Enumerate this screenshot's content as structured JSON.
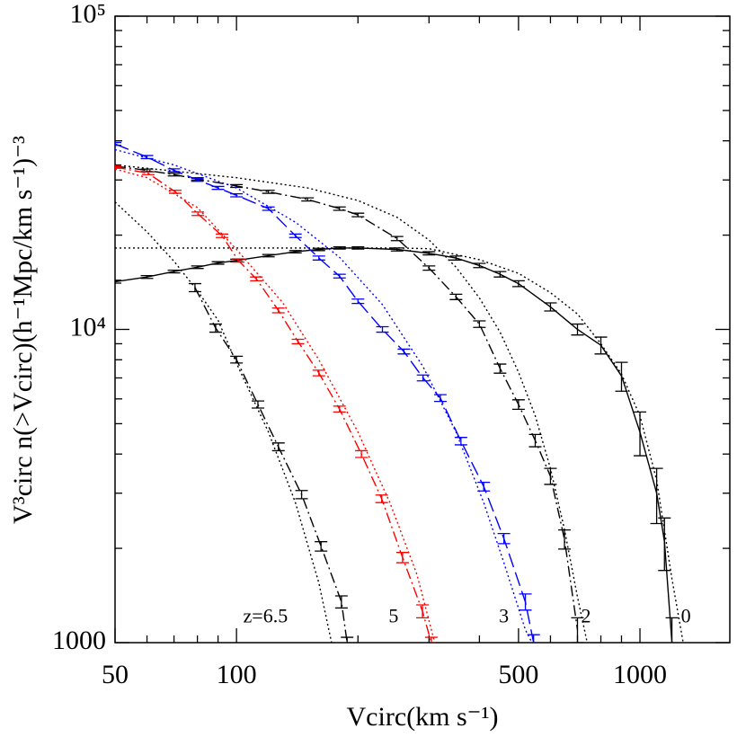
{
  "chart_data": {
    "type": "line",
    "xlabel": "Vcirc(km s⁻¹)",
    "ylabel": "V³circ n(>Vcirc)(h⁻¹Mpc/km s⁻¹)⁻³",
    "xlog": true,
    "ylog": true,
    "xlim": [
      50,
      1670
    ],
    "ylim": [
      1000,
      100000
    ],
    "xticks": [
      50,
      100,
      500,
      1000
    ],
    "yticks": [
      {
        "value": 1000,
        "label": "1000"
      },
      {
        "value": 10000,
        "label": "10⁴"
      },
      {
        "value": 100000,
        "label": "10⁵"
      }
    ],
    "xminor": [
      60,
      70,
      80,
      90,
      200,
      300,
      400,
      600,
      700,
      800,
      900
    ],
    "yminor": [
      2000,
      3000,
      4000,
      5000,
      6000,
      7000,
      8000,
      9000,
      20000,
      30000,
      40000,
      50000,
      60000,
      70000,
      80000,
      90000
    ],
    "series": [
      {
        "color": "#000000",
        "linestyle": "solid",
        "x": [
          50,
          60,
          70,
          80,
          90,
          100,
          120,
          140,
          160,
          180,
          200,
          250,
          300,
          350,
          400,
          450,
          500,
          600,
          700,
          800,
          900,
          1000,
          1100,
          1150,
          1200
        ],
        "values": [
          14200,
          14700,
          15300,
          15800,
          16300,
          16600,
          17200,
          17700,
          18000,
          18200,
          18200,
          18000,
          17500,
          16900,
          16000,
          15000,
          14000,
          11800,
          10000,
          8900,
          7100,
          4700,
          3000,
          2100,
          1000
        ],
        "errors": [
          150,
          150,
          150,
          150,
          150,
          150,
          150,
          150,
          150,
          150,
          150,
          200,
          200,
          250,
          250,
          300,
          300,
          350,
          400,
          550,
          750,
          750,
          600,
          400,
          200
        ]
      },
      {
        "color": "#000000",
        "linestyle": "dotted",
        "x": [
          50,
          100,
          150,
          200,
          250,
          300,
          400,
          500,
          600,
          700,
          800,
          900,
          1000,
          1100,
          1200,
          1280
        ],
        "values": [
          18200,
          18200,
          18200,
          18200,
          18200,
          18100,
          16700,
          15100,
          13100,
          11200,
          9000,
          7200,
          5300,
          3300,
          1600,
          1000
        ]
      },
      {
        "color": "#000000",
        "linestyle": "dash-dot",
        "x": [
          50,
          60,
          70,
          80,
          100,
          120,
          150,
          180,
          200,
          250,
          300,
          350,
          400,
          450,
          500,
          550,
          600,
          650,
          700
        ],
        "values": [
          33200,
          32200,
          31200,
          30200,
          28700,
          27500,
          26000,
          24300,
          23200,
          19500,
          15700,
          12700,
          10400,
          7500,
          5760,
          4420,
          3400,
          2140,
          1100
        ],
        "errors": [
          300,
          300,
          300,
          300,
          300,
          300,
          300,
          300,
          300,
          300,
          250,
          250,
          250,
          250,
          200,
          200,
          200,
          150,
          100
        ]
      },
      {
        "color": "#000000",
        "linestyle": "dotted",
        "x": [
          50,
          100,
          150,
          200,
          250,
          300,
          350,
          400,
          450,
          500,
          550,
          600,
          650,
          700,
          740
        ],
        "values": [
          33500,
          30500,
          28300,
          25800,
          22800,
          19300,
          15800,
          12600,
          9800,
          7300,
          5300,
          3600,
          2300,
          1400,
          1000
        ]
      },
      {
        "color": "#0000ff",
        "linestyle": "dashed",
        "x": [
          50,
          60,
          70,
          80,
          90,
          100,
          120,
          140,
          160,
          180,
          200,
          230,
          260,
          290,
          320,
          360,
          410,
          460,
          520,
          545
        ],
        "values": [
          39100,
          35500,
          32200,
          30000,
          28300,
          26800,
          24300,
          19900,
          16900,
          14800,
          12300,
          10000,
          8500,
          7000,
          6040,
          4400,
          3150,
          2150,
          1350,
          1000
        ],
        "errors": [
          400,
          400,
          350,
          300,
          300,
          300,
          300,
          250,
          250,
          200,
          200,
          200,
          150,
          150,
          150,
          120,
          100,
          80,
          80,
          60
        ]
      },
      {
        "color": "#0000ff",
        "linestyle": "dotted",
        "x": [
          50,
          70,
          100,
          140,
          180,
          230,
          290,
          350,
          410,
          460,
          520,
          540
        ],
        "values": [
          37500,
          33500,
          28300,
          22000,
          17000,
          12000,
          7600,
          4700,
          2800,
          1800,
          1100,
          1000
        ]
      },
      {
        "color": "#ff0000",
        "linestyle": "dash-dot",
        "x": [
          50,
          60.4,
          70.5,
          80.2,
          92.1,
          101,
          112,
          127,
          142,
          160,
          180,
          204,
          229,
          258,
          289,
          304
        ],
        "values": [
          33000,
          31500,
          27500,
          23400,
          19900,
          16600,
          14500,
          11500,
          9150,
          7260,
          5570,
          4000,
          2880,
          1870,
          1260,
          1000
        ],
        "errors": [
          300,
          300,
          300,
          300,
          250,
          200,
          200,
          200,
          150,
          150,
          120,
          100,
          80,
          70,
          60,
          40
        ]
      },
      {
        "color": "#ff0000",
        "linestyle": "dotted",
        "x": [
          50,
          60,
          80,
          100,
          130,
          160,
          200,
          240,
          280,
          310
        ],
        "values": [
          32500,
          30500,
          24500,
          18000,
          12200,
          8000,
          4700,
          2800,
          1650,
          1000
        ]
      },
      {
        "color": "#000000",
        "linestyle": "dash-dot",
        "x": [
          78.9,
          88.8,
          100,
          113,
          127,
          145,
          162,
          182,
          188
        ],
        "values": [
          13600,
          10100,
          8010,
          5760,
          4220,
          2970,
          2030,
          1350,
          1000
        ],
        "errors": [
          400,
          300,
          200,
          150,
          120,
          90,
          70,
          60,
          40
        ]
      },
      {
        "color": "#000000",
        "linestyle": "dotted",
        "x": [
          50,
          60,
          70,
          80,
          90,
          100,
          120,
          140,
          160,
          172
        ],
        "values": [
          25500,
          20500,
          16500,
          13300,
          10700,
          7800,
          4700,
          2800,
          1550,
          1000
        ]
      }
    ],
    "annotations": [
      {
        "text": "z=6.5",
        "x": 118,
        "y": 1200
      },
      {
        "text": "5",
        "x": 245,
        "y": 1200
      },
      {
        "text": "3",
        "x": 460,
        "y": 1200
      },
      {
        "text": "2",
        "x": 735,
        "y": 1200
      },
      {
        "text": "0",
        "x": 1300,
        "y": 1200
      }
    ]
  }
}
